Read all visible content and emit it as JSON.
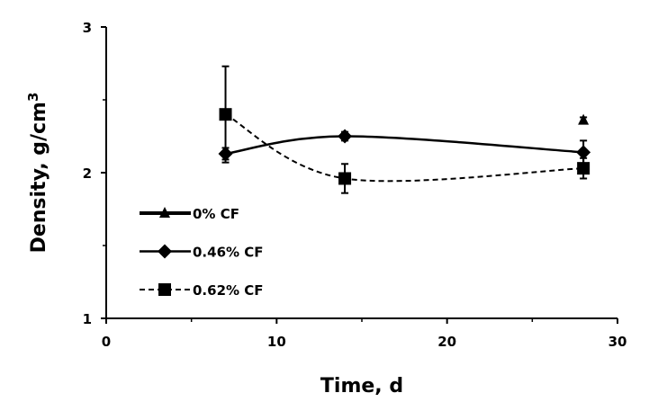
{
  "chart_data": {
    "type": "line",
    "xlabel": "Time, d",
    "ylabel": "Density, g/cm",
    "ylabel_superscript": "3",
    "xlim": [
      0,
      30
    ],
    "ylim": [
      1,
      3
    ],
    "xticks": [
      0,
      10,
      20,
      30
    ],
    "yticks": [
      1,
      2,
      3
    ],
    "grid": false,
    "legend_position": "left",
    "series": [
      {
        "name": "0% CF",
        "marker": "triangle",
        "line": "solid-thick",
        "x": [
          28
        ],
        "y": [
          2.36
        ],
        "err": [
          0.02
        ]
      },
      {
        "name": "0.46% CF",
        "marker": "diamond",
        "line": "solid",
        "x": [
          7,
          14,
          28
        ],
        "y": [
          2.13,
          2.25,
          2.14
        ],
        "err": [
          0.04,
          0.03,
          0.08
        ]
      },
      {
        "name": "0.62% CF",
        "marker": "square",
        "line": "dashed",
        "x": [
          7,
          14,
          28
        ],
        "y": [
          2.4,
          1.96,
          2.03
        ],
        "err": [
          0.33,
          0.1,
          0.07
        ]
      }
    ]
  }
}
